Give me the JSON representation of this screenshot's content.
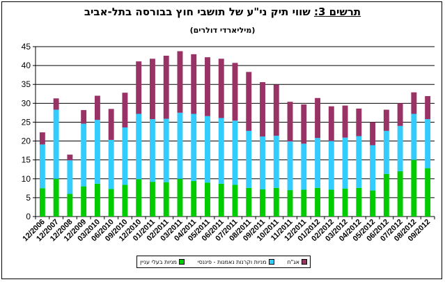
{
  "colors": {
    "equity": "#00cc00",
    "funds": "#33ccff",
    "bonds": "#993366"
  },
  "chart_data": {
    "type": "bar",
    "stacked": true,
    "title_label": "תרשים 3:",
    "title_text": "שווי תיק ני\"ע של תושבי חוץ בבורסה בתל-אביב",
    "subtitle": "(מיליארדי דולרים)",
    "ylim": [
      0,
      45
    ],
    "yticks": [
      0,
      5,
      10,
      15,
      20,
      25,
      30,
      35,
      40,
      45
    ],
    "grid": true,
    "legend_position": "bottom",
    "categories": [
      "12/2006",
      "12/2007",
      "12/2008",
      "12/2009",
      "03/2010",
      "06/2010",
      "09/2010",
      "12/2010",
      "01/2011",
      "02/2011",
      "03/2011",
      "04/2011",
      "05/2011",
      "06/2011",
      "07/2011",
      "08/2011",
      "09/2011",
      "10/2011",
      "11/2011",
      "12/2011",
      "01/2012",
      "02/2012",
      "03/2012",
      "04/2012",
      "05/2012",
      "06/2012",
      "07/2012",
      "08/2012",
      "09/2012"
    ],
    "series": [
      {
        "name": "מניות בעלי עניין",
        "values": [
          7.5,
          10.0,
          6.0,
          8.0,
          8.7,
          7.3,
          8.4,
          9.9,
          9.2,
          9.1,
          10.0,
          9.4,
          9.0,
          8.7,
          8.4,
          7.6,
          7.2,
          7.6,
          7.0,
          7.1,
          7.6,
          7.1,
          7.4,
          7.6,
          6.9,
          11.3,
          12.0,
          15.0,
          12.8
        ]
      },
      {
        "name": "מניות וקרנות נאמנות - פיננסי",
        "values": [
          11.6,
          18.3,
          8.9,
          16.6,
          16.9,
          13.0,
          15.2,
          17.3,
          16.6,
          16.8,
          17.5,
          17.8,
          17.6,
          17.4,
          17.0,
          15.1,
          14.0,
          13.8,
          12.9,
          12.2,
          13.2,
          12.9,
          13.5,
          13.7,
          12.0,
          11.4,
          12.0,
          12.2,
          13.0
        ]
      },
      {
        "name": "אג\"ח",
        "values": [
          3.2,
          3.0,
          1.5,
          3.6,
          6.4,
          8.2,
          9.2,
          13.9,
          16.0,
          16.7,
          16.3,
          15.8,
          15.6,
          15.7,
          15.3,
          15.6,
          14.4,
          13.5,
          10.5,
          10.4,
          10.6,
          9.2,
          8.5,
          7.3,
          6.1,
          5.6,
          6.0,
          5.7,
          6.1
        ]
      }
    ]
  }
}
